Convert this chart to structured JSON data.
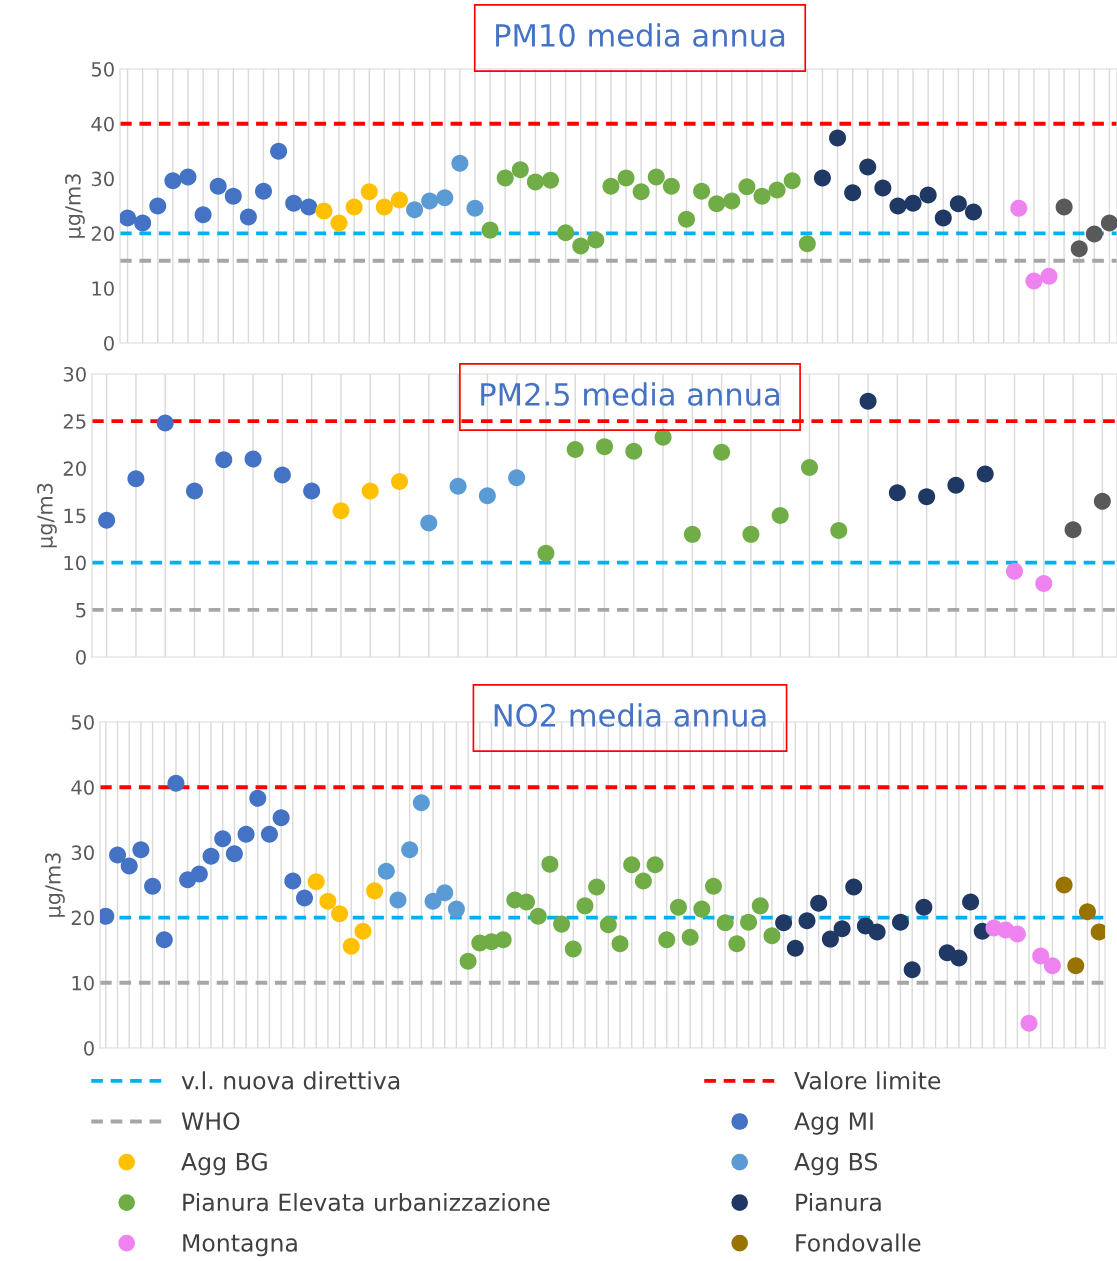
{
  "chart_data": [
    {
      "type": "scatter",
      "title": "PM10 media annua",
      "ylabel": "µg/m3",
      "categories": [
        null,
        null,
        null,
        null,
        null,
        null,
        null,
        null,
        null,
        null,
        null,
        null,
        null,
        null,
        null,
        null,
        null,
        null,
        null,
        null,
        null,
        null,
        null,
        null,
        null,
        null,
        null,
        null,
        null,
        null,
        null,
        null,
        null,
        null,
        null,
        null,
        null,
        null,
        null,
        null,
        null,
        null,
        null,
        null,
        null,
        null,
        null,
        null,
        null,
        null,
        null,
        null,
        null,
        null,
        null,
        null,
        null,
        null,
        null,
        null,
        null,
        null,
        null,
        null,
        null,
        null
      ],
      "ylim": [
        0,
        50
      ],
      "yticks": [
        0,
        10,
        20,
        30,
        40,
        50
      ],
      "grid": "x",
      "tick_labels": "y",
      "marker": "circle",
      "ref_lines": [
        {
          "axis": "y",
          "value": 20,
          "color": "#00b0f0",
          "line_style": "dashed"
        },
        {
          "axis": "y",
          "value": 40,
          "color": "#ff0000",
          "line_style": "dashed"
        },
        {
          "axis": "y",
          "value": 15,
          "color": "#a6a6a6",
          "line_style": "dashed"
        }
      ],
      "series": [
        {
          "color": "#4472c4",
          "values": [
            22.8,
            21.9,
            25,
            29.6,
            30.3,
            23.4,
            28.6,
            26.8,
            23,
            27.7,
            35,
            25.5,
            24.8,
            null,
            null,
            null,
            null,
            null,
            null,
            null,
            null,
            null,
            null,
            null,
            null,
            null,
            null,
            null,
            null,
            null,
            null,
            null,
            null,
            null,
            null,
            null,
            null,
            null,
            null,
            null,
            null,
            null,
            null,
            null,
            null,
            null,
            null,
            null,
            null,
            null,
            null,
            null,
            null,
            null,
            null,
            null,
            null,
            null,
            null,
            null,
            null,
            null,
            null,
            null,
            null,
            null
          ]
        },
        {
          "color": "#ffc000",
          "values": [
            null,
            null,
            null,
            null,
            null,
            null,
            null,
            null,
            null,
            null,
            null,
            null,
            null,
            24.1,
            21.9,
            24.8,
            27.6,
            24.8,
            26.1,
            null,
            null,
            null,
            null,
            null,
            null,
            null,
            null,
            null,
            null,
            null,
            null,
            null,
            null,
            null,
            null,
            null,
            null,
            null,
            null,
            null,
            null,
            null,
            null,
            null,
            null,
            null,
            null,
            null,
            null,
            null,
            null,
            null,
            null,
            null,
            null,
            null,
            null,
            null,
            null,
            null,
            null,
            null,
            null,
            null,
            null,
            null
          ]
        },
        {
          "color": "#5b9bd5",
          "values": [
            null,
            null,
            null,
            null,
            null,
            null,
            null,
            null,
            null,
            null,
            null,
            null,
            null,
            null,
            null,
            null,
            null,
            null,
            null,
            24.3,
            25.9,
            26.5,
            32.8,
            24.6,
            null,
            null,
            null,
            null,
            null,
            null,
            null,
            null,
            null,
            null,
            null,
            null,
            null,
            null,
            null,
            null,
            null,
            null,
            null,
            null,
            null,
            null,
            null,
            null,
            null,
            null,
            null,
            null,
            null,
            null,
            null,
            null,
            null,
            null,
            null,
            null,
            null,
            null,
            null,
            null,
            null,
            null
          ]
        },
        {
          "color": "#70ad47",
          "values": [
            null,
            null,
            null,
            null,
            null,
            null,
            null,
            null,
            null,
            null,
            null,
            null,
            null,
            null,
            null,
            null,
            null,
            null,
            null,
            null,
            null,
            null,
            null,
            null,
            20.6,
            30.1,
            31.6,
            29.4,
            29.7,
            20.1,
            17.7,
            18.8,
            28.6,
            30.1,
            27.6,
            30.3,
            28.6,
            22.6,
            27.7,
            25.4,
            25.9,
            28.5,
            26.8,
            27.9,
            29.6,
            18.1,
            null,
            null,
            null,
            null,
            null,
            null,
            null,
            null,
            null,
            null,
            null,
            null,
            null,
            null,
            null,
            null,
            null,
            null,
            null,
            null
          ]
        },
        {
          "color": "#1f3864",
          "values": [
            null,
            null,
            null,
            null,
            null,
            null,
            null,
            null,
            null,
            null,
            null,
            null,
            null,
            null,
            null,
            null,
            null,
            null,
            null,
            null,
            null,
            null,
            null,
            null,
            null,
            null,
            null,
            null,
            null,
            null,
            null,
            null,
            null,
            null,
            null,
            null,
            null,
            null,
            null,
            null,
            null,
            null,
            null,
            null,
            null,
            null,
            30.1,
            37.4,
            27.4,
            32.1,
            28.3,
            25,
            25.5,
            27,
            22.8,
            25.4,
            23.9,
            null,
            null,
            null,
            null,
            null,
            null,
            null,
            null,
            null
          ]
        },
        {
          "color": "#ee82ee",
          "values": [
            null,
            null,
            null,
            null,
            null,
            null,
            null,
            null,
            null,
            null,
            null,
            null,
            null,
            null,
            null,
            null,
            null,
            null,
            null,
            null,
            null,
            null,
            null,
            null,
            null,
            null,
            null,
            null,
            null,
            null,
            null,
            null,
            null,
            null,
            null,
            null,
            null,
            null,
            null,
            null,
            null,
            null,
            null,
            null,
            null,
            null,
            null,
            null,
            null,
            null,
            null,
            null,
            null,
            null,
            null,
            null,
            null,
            null,
            null,
            24.6,
            11.3,
            12.2,
            null,
            null,
            null,
            null
          ]
        },
        {
          "color": "#595959",
          "values": [
            null,
            null,
            null,
            null,
            null,
            null,
            null,
            null,
            null,
            null,
            null,
            null,
            null,
            null,
            null,
            null,
            null,
            null,
            null,
            null,
            null,
            null,
            null,
            null,
            null,
            null,
            null,
            null,
            null,
            null,
            null,
            null,
            null,
            null,
            null,
            null,
            null,
            null,
            null,
            null,
            null,
            null,
            null,
            null,
            null,
            null,
            null,
            null,
            null,
            null,
            null,
            null,
            null,
            null,
            null,
            null,
            null,
            null,
            null,
            null,
            null,
            null,
            24.8,
            17.2,
            19.9,
            21.9
          ]
        }
      ]
    },
    {
      "type": "scatter",
      "title": "PM2.5 media annua",
      "ylabel": "µg/m3",
      "categories": [
        null,
        null,
        null,
        null,
        null,
        null,
        null,
        null,
        null,
        null,
        null,
        null,
        null,
        null,
        null,
        null,
        null,
        null,
        null,
        null,
        null,
        null,
        null,
        null,
        null,
        null,
        null,
        null,
        null,
        null,
        null,
        null,
        null,
        null,
        null
      ],
      "ylim": [
        0,
        30
      ],
      "yticks": [
        0,
        5,
        10,
        15,
        20,
        25,
        30
      ],
      "grid": "x",
      "tick_labels": "y",
      "marker": "circle",
      "ref_lines": [
        {
          "axis": "y",
          "value": 10,
          "color": "#00b0f0",
          "line_style": "dashed"
        },
        {
          "axis": "y",
          "value": 25,
          "color": "#ff0000",
          "line_style": "dashed"
        },
        {
          "axis": "y",
          "value": 5,
          "color": "#a6a6a6",
          "line_style": "dashed"
        }
      ],
      "series": [
        {
          "color": "#4472c4",
          "values": [
            14.5,
            18.9,
            24.8,
            17.6,
            20.9,
            21.0,
            19.3,
            17.6,
            null,
            null,
            null,
            null,
            null,
            null,
            null,
            null,
            null,
            null,
            null,
            null,
            null,
            null,
            null,
            null,
            null,
            null,
            null,
            null,
            null,
            null,
            null,
            null,
            null,
            null,
            null
          ]
        },
        {
          "color": "#ffc000",
          "values": [
            null,
            null,
            null,
            null,
            null,
            null,
            null,
            null,
            15.5,
            17.6,
            18.6,
            null,
            null,
            null,
            null,
            null,
            null,
            null,
            null,
            null,
            null,
            null,
            null,
            null,
            null,
            null,
            null,
            null,
            null,
            null,
            null,
            null,
            null,
            null,
            null
          ]
        },
        {
          "color": "#5b9bd5",
          "values": [
            null,
            null,
            null,
            null,
            null,
            null,
            null,
            null,
            null,
            null,
            null,
            14.2,
            18.1,
            17.1,
            19.0,
            null,
            null,
            null,
            null,
            null,
            null,
            null,
            null,
            null,
            null,
            null,
            null,
            null,
            null,
            null,
            null,
            null,
            null,
            null,
            null
          ]
        },
        {
          "color": "#70ad47",
          "values": [
            null,
            null,
            null,
            null,
            null,
            null,
            null,
            null,
            null,
            null,
            null,
            null,
            null,
            null,
            null,
            11.0,
            22.0,
            22.3,
            21.8,
            23.3,
            13.0,
            21.7,
            13.0,
            15.0,
            20.1,
            13.4,
            null,
            null,
            null,
            null,
            null,
            null,
            null,
            null,
            null
          ]
        },
        {
          "color": "#1f3864",
          "values": [
            null,
            null,
            null,
            null,
            null,
            null,
            null,
            null,
            null,
            null,
            null,
            null,
            null,
            null,
            null,
            null,
            null,
            null,
            null,
            null,
            null,
            null,
            null,
            null,
            null,
            null,
            27.1,
            17.4,
            17.0,
            18.2,
            19.4,
            null,
            null,
            null,
            null
          ]
        },
        {
          "color": "#ee82ee",
          "values": [
            null,
            null,
            null,
            null,
            null,
            null,
            null,
            null,
            null,
            null,
            null,
            null,
            null,
            null,
            null,
            null,
            null,
            null,
            null,
            null,
            null,
            null,
            null,
            null,
            null,
            null,
            null,
            null,
            null,
            null,
            null,
            9.1,
            7.8,
            null,
            null
          ]
        },
        {
          "color": "#595959",
          "values": [
            null,
            null,
            null,
            null,
            null,
            null,
            null,
            null,
            null,
            null,
            null,
            null,
            null,
            null,
            null,
            null,
            null,
            null,
            null,
            null,
            null,
            null,
            null,
            null,
            null,
            null,
            null,
            null,
            null,
            null,
            null,
            null,
            null,
            13.5,
            16.5
          ]
        }
      ]
    },
    {
      "type": "scatter",
      "title": "NO2 media annua",
      "ylabel": "µg/m3",
      "categories": [
        null,
        null,
        null,
        null,
        null,
        null,
        null,
        null,
        null,
        null,
        null,
        null,
        null,
        null,
        null,
        null,
        null,
        null,
        null,
        null,
        null,
        null,
        null,
        null,
        null,
        null,
        null,
        null,
        null,
        null,
        null,
        null,
        null,
        null,
        null,
        null,
        null,
        null,
        null,
        null,
        null,
        null,
        null,
        null,
        null,
        null,
        null,
        null,
        null,
        null,
        null,
        null,
        null,
        null,
        null,
        null,
        null,
        null,
        null,
        null,
        null,
        null,
        null,
        null,
        null,
        null,
        null,
        null,
        null,
        null,
        null,
        null,
        null,
        null,
        null,
        null,
        null,
        null,
        null,
        null,
        null,
        null,
        null,
        null,
        null,
        null
      ],
      "ylim": [
        0,
        50
      ],
      "yticks": [
        0,
        10,
        20,
        30,
        40,
        50
      ],
      "grid": "x",
      "tick_labels": "y",
      "marker": "circle",
      "legend": "bottom",
      "ref_lines": [
        {
          "axis": "y",
          "value": 20,
          "label": "v.l. nuova direttiva",
          "color": "#00b0f0",
          "line_style": "dashed"
        },
        {
          "axis": "y",
          "value": 40,
          "label": "Valore limite",
          "color": "#ff0000",
          "line_style": "dashed"
        },
        {
          "axis": "y",
          "value": 10,
          "label": "WHO",
          "color": "#a6a6a6",
          "line_style": "dashed"
        }
      ],
      "series": [
        {
          "name": "Agg MI",
          "color": "#4472c4",
          "values": [
            20.2,
            29.6,
            27.9,
            30.4,
            24.8,
            16.6,
            40.6,
            25.8,
            26.7,
            29.4,
            32.1,
            29.8,
            32.8,
            38.3,
            32.8,
            35.3,
            25.6,
            23.0,
            null,
            null,
            null,
            null,
            null,
            null,
            null,
            null,
            null,
            null,
            null,
            null,
            null,
            null,
            null,
            null,
            null,
            null,
            null,
            null,
            null,
            null,
            null,
            null,
            null,
            null,
            null,
            null,
            null,
            null,
            null,
            null,
            null,
            null,
            null,
            null,
            null,
            null,
            null,
            null,
            null,
            null,
            null,
            null,
            null,
            null,
            null,
            null,
            null,
            null,
            null,
            null,
            null,
            null,
            null,
            null,
            null,
            null,
            null,
            null,
            null,
            null,
            null,
            null,
            null,
            null,
            null,
            null
          ]
        },
        {
          "name": "Agg BG",
          "color": "#ffc000",
          "values": [
            null,
            null,
            null,
            null,
            null,
            null,
            null,
            null,
            null,
            null,
            null,
            null,
            null,
            null,
            null,
            null,
            null,
            null,
            25.5,
            22.5,
            20.6,
            15.6,
            17.9,
            24.1,
            null,
            null,
            null,
            null,
            null,
            null,
            null,
            null,
            null,
            null,
            null,
            null,
            null,
            null,
            null,
            null,
            null,
            null,
            null,
            null,
            null,
            null,
            null,
            null,
            null,
            null,
            null,
            null,
            null,
            null,
            null,
            null,
            null,
            null,
            null,
            null,
            null,
            null,
            null,
            null,
            null,
            null,
            null,
            null,
            null,
            null,
            null,
            null,
            null,
            null,
            null,
            null,
            null,
            null,
            null,
            null,
            null,
            null,
            null,
            null,
            null,
            null
          ]
        },
        {
          "name": "Agg BS",
          "color": "#5b9bd5",
          "values": [
            null,
            null,
            null,
            null,
            null,
            null,
            null,
            null,
            null,
            null,
            null,
            null,
            null,
            null,
            null,
            null,
            null,
            null,
            null,
            null,
            null,
            null,
            null,
            null,
            27.1,
            22.7,
            30.4,
            37.6,
            22.5,
            23.8,
            21.3,
            null,
            null,
            null,
            null,
            null,
            null,
            null,
            null,
            null,
            null,
            null,
            null,
            null,
            null,
            null,
            null,
            null,
            null,
            null,
            null,
            null,
            null,
            null,
            null,
            null,
            null,
            null,
            null,
            null,
            null,
            null,
            null,
            null,
            null,
            null,
            null,
            null,
            null,
            null,
            null,
            null,
            null,
            null,
            null,
            null,
            null,
            null,
            null,
            null,
            null,
            null,
            null,
            null,
            null,
            null
          ]
        },
        {
          "name": "Pianura Elevata urbanizzazione",
          "color": "#70ad47",
          "values": [
            null,
            null,
            null,
            null,
            null,
            null,
            null,
            null,
            null,
            null,
            null,
            null,
            null,
            null,
            null,
            null,
            null,
            null,
            null,
            null,
            null,
            null,
            null,
            null,
            null,
            null,
            null,
            null,
            null,
            null,
            null,
            13.3,
            16.1,
            16.3,
            16.6,
            22.7,
            22.4,
            20.2,
            28.2,
            19.0,
            15.2,
            21.8,
            24.7,
            18.9,
            16.0,
            28.1,
            25.6,
            28.1,
            16.6,
            21.6,
            17.0,
            21.3,
            24.8,
            19.2,
            16.0,
            19.3,
            21.8,
            17.2,
            null,
            null,
            null,
            null,
            null,
            null,
            null,
            null,
            null,
            null,
            null,
            null,
            null,
            null,
            null,
            null,
            null,
            null,
            null,
            null,
            null,
            null,
            null,
            null,
            null,
            null,
            null,
            null
          ]
        },
        {
          "name": "Pianura",
          "color": "#1f3864",
          "values": [
            null,
            null,
            null,
            null,
            null,
            null,
            null,
            null,
            null,
            null,
            null,
            null,
            null,
            null,
            null,
            null,
            null,
            null,
            null,
            null,
            null,
            null,
            null,
            null,
            null,
            null,
            null,
            null,
            null,
            null,
            null,
            null,
            null,
            null,
            null,
            null,
            null,
            null,
            null,
            null,
            null,
            null,
            null,
            null,
            null,
            null,
            null,
            null,
            null,
            null,
            null,
            null,
            null,
            null,
            null,
            null,
            null,
            null,
            19.2,
            15.3,
            19.5,
            22.2,
            16.7,
            18.3,
            24.7,
            18.7,
            17.8,
            null,
            19.3,
            12.0,
            21.6,
            null,
            14.6,
            13.8,
            22.4,
            17.9,
            null,
            null,
            null,
            null,
            null,
            null,
            null,
            null,
            null,
            null
          ]
        },
        {
          "name": "Montagna",
          "color": "#ee82ee",
          "values": [
            null,
            null,
            null,
            null,
            null,
            null,
            null,
            null,
            null,
            null,
            null,
            null,
            null,
            null,
            null,
            null,
            null,
            null,
            null,
            null,
            null,
            null,
            null,
            null,
            null,
            null,
            null,
            null,
            null,
            null,
            null,
            null,
            null,
            null,
            null,
            null,
            null,
            null,
            null,
            null,
            null,
            null,
            null,
            null,
            null,
            null,
            null,
            null,
            null,
            null,
            null,
            null,
            null,
            null,
            null,
            null,
            null,
            null,
            null,
            null,
            null,
            null,
            null,
            null,
            null,
            null,
            null,
            null,
            null,
            null,
            null,
            null,
            null,
            null,
            null,
            null,
            18.4,
            18.1,
            17.5,
            3.8,
            14.1,
            12.6,
            null,
            null,
            null,
            null
          ]
        },
        {
          "name": "Fondovalle",
          "color": "#997300",
          "values": [
            null,
            null,
            null,
            null,
            null,
            null,
            null,
            null,
            null,
            null,
            null,
            null,
            null,
            null,
            null,
            null,
            null,
            null,
            null,
            null,
            null,
            null,
            null,
            null,
            null,
            null,
            null,
            null,
            null,
            null,
            null,
            null,
            null,
            null,
            null,
            null,
            null,
            null,
            null,
            null,
            null,
            null,
            null,
            null,
            null,
            null,
            null,
            null,
            null,
            null,
            null,
            null,
            null,
            null,
            null,
            null,
            null,
            null,
            null,
            null,
            null,
            null,
            null,
            null,
            null,
            null,
            null,
            null,
            null,
            null,
            null,
            null,
            null,
            null,
            null,
            null,
            null,
            null,
            null,
            null,
            null,
            null,
            25.0,
            12.6,
            20.9,
            17.8
          ]
        }
      ]
    }
  ]
}
